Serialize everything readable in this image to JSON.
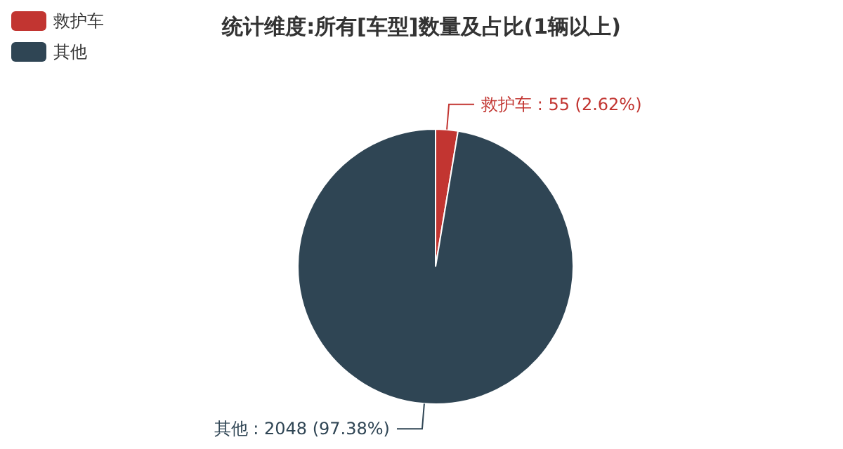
{
  "chart_data": {
    "type": "pie",
    "title": "统计维度:所有[车型]数量及占比(1辆以上)",
    "categories": [
      "救护车",
      "其他"
    ],
    "values": [
      55,
      2048
    ],
    "colors": [
      "#c23531",
      "#2f4554"
    ],
    "value_labels": [
      "救护车 : 55 (2.62%)",
      "其他 : 2048 (97.38%)"
    ],
    "legend": "top left"
  }
}
